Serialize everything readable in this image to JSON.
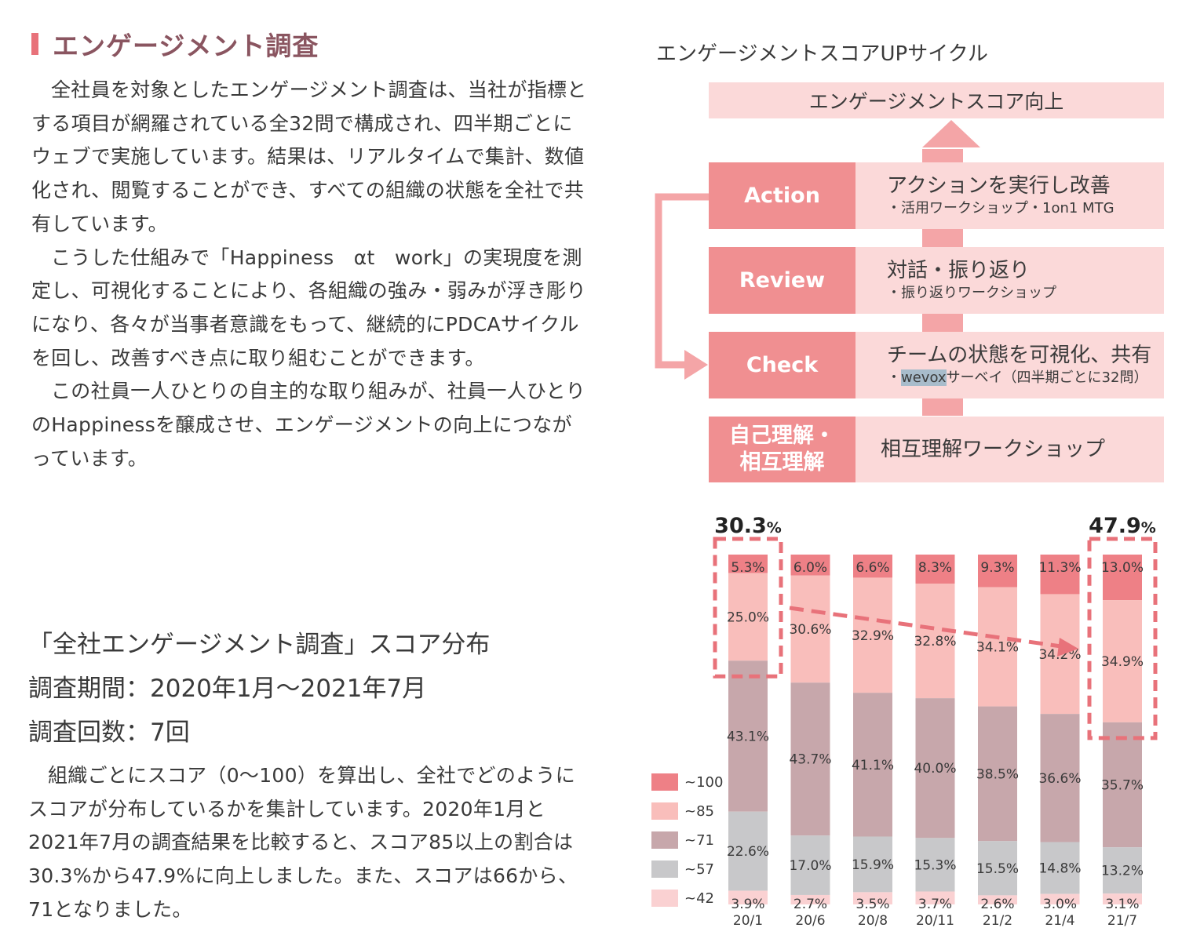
{
  "section": {
    "title": "エンゲージメント調査"
  },
  "intro": {
    "paragraphs": [
      "全社員を対象としたエンゲージメント調査は、当社が指標とする項目が網羅されている全32問で構成され、四半期ごとにウェブで実施しています。結果は、リアルタイムで集計、数値化され、閲覧することができ、すべての組織の状態を全社で共有しています。",
      "こうした仕組みで「Happiness　αt　work」の実現度を測定し、可視化することにより、各組織の強み・弱みが浮き彫りになり、各々が当事者意識をもって、継続的にPDCAサイクルを回し、改善すべき点に取り組むことができます。",
      "この社員一人ひとりの自主的な取り組みが、社員一人ひとりのHappinessを醸成させ、エンゲージメントの向上につながっています。"
    ]
  },
  "survey": {
    "title": "「全社エンゲージメント調査」スコア分布",
    "period": "調査期間：2020年1月～2021年7月",
    "count": "調査回数：7回",
    "description": "組織ごとにスコア（0～100）を算出し、全社でどのようにスコアが分布しているかを集計しています。2020年1月と2021年7月の調査結果を比較すると、スコア85以上の割合は30.3%から47.9%に向上しました。また、スコアは66から、71となりました。"
  },
  "cycle": {
    "title": "エンゲージメントスコアUPサイクル",
    "goal": "エンゲージメントスコア向上",
    "stages": [
      {
        "label": "Action",
        "main": "アクションを実行し改善",
        "sub_pre": "・活用ワークショップ・1on1 MTG",
        "sub_hl": "",
        "sub_post": ""
      },
      {
        "label": "Review",
        "main": "対話・振り返り",
        "sub_pre": "・振り返りワークショップ",
        "sub_hl": "",
        "sub_post": ""
      },
      {
        "label": "Check",
        "main": "チームの状態を可視化、共有",
        "sub_pre": "・",
        "sub_hl": "wevox",
        "sub_post": "サーベイ（四半期ごとに32問）"
      },
      {
        "label": "自己理解・\n相互理解",
        "main": "相互理解ワークショップ",
        "sub_pre": "",
        "sub_hl": "",
        "sub_post": ""
      }
    ]
  },
  "colors": {
    "s100": "#ee8086",
    "s85": "#f9bebb",
    "s71": "#c7a7ab",
    "s57": "#c8c8ca",
    "s42": "#fad1d2",
    "accent": "#e8727a",
    "stage": "#f08f91",
    "light": "#fbd9d9"
  },
  "chart_data": {
    "type": "bar",
    "stacked": true,
    "categories": [
      "20/1",
      "20/6",
      "20/8",
      "20/11",
      "21/2",
      "21/4",
      "21/7"
    ],
    "series": [
      {
        "name": "~100",
        "values": [
          5.3,
          6.0,
          6.6,
          8.3,
          9.3,
          11.3,
          13.0
        ]
      },
      {
        "name": "~85",
        "values": [
          25.0,
          30.6,
          32.9,
          32.8,
          34.1,
          34.2,
          34.9
        ]
      },
      {
        "name": "~71",
        "values": [
          43.1,
          43.7,
          41.1,
          40.0,
          38.5,
          36.6,
          35.7
        ]
      },
      {
        "name": "~57",
        "values": [
          22.6,
          17.0,
          15.9,
          15.3,
          15.5,
          14.8,
          13.2
        ]
      },
      {
        "name": "~42",
        "values": [
          3.9,
          2.7,
          3.5,
          3.7,
          2.6,
          3.0,
          3.1
        ]
      }
    ],
    "highlights": [
      {
        "category": "20/1",
        "total": "30.3",
        "unit": "%"
      },
      {
        "category": "21/7",
        "total": "47.9",
        "unit": "%"
      }
    ],
    "legend_position": "left"
  }
}
